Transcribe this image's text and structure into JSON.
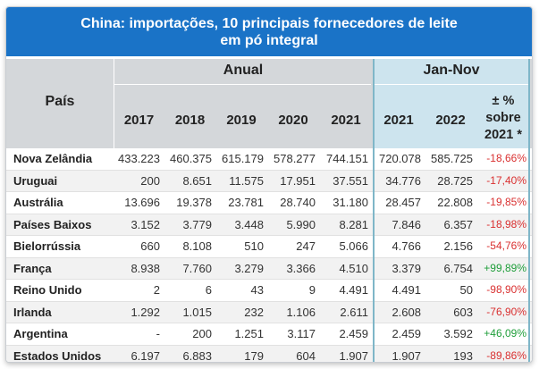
{
  "title": {
    "line1": "China: importações, 10 principais fornecedores de leite",
    "line2": "em pó integral"
  },
  "header": {
    "country": "País",
    "anual": "Anual",
    "jannov": "Jan-Nov",
    "years": [
      "2017",
      "2018",
      "2019",
      "2020",
      "2021"
    ],
    "jn_years": [
      "2021",
      "2022"
    ],
    "change_line1": "± %",
    "change_line2": "sobre",
    "change_line3": "2021 *"
  },
  "colors": {
    "title_bg": "#1a73c7",
    "header_bg": "#d4d7da",
    "jannov_bg": "#cde4ee",
    "negative": "#d93030",
    "positive": "#1f9e3a"
  },
  "chart_data": {
    "type": "table",
    "title": "China: importações, 10 principais fornecedores de leite em pó integral",
    "columns": [
      "País",
      "2017",
      "2018",
      "2019",
      "2020",
      "2021",
      "Jan-Nov 2021",
      "Jan-Nov 2022",
      "± % sobre 2021 *"
    ],
    "rows": [
      {
        "country": "Nova Zelândia",
        "v2017": "433.223",
        "v2018": "460.375",
        "v2019": "615.179",
        "v2020": "578.277",
        "v2021": "744.151",
        "jn2021": "720.078",
        "jn2022": "585.725",
        "change": "-18,66%",
        "positive": false
      },
      {
        "country": "Uruguai",
        "v2017": "200",
        "v2018": "8.651",
        "v2019": "11.575",
        "v2020": "17.951",
        "v2021": "37.551",
        "jn2021": "34.776",
        "jn2022": "28.725",
        "change": "-17,40%",
        "positive": false
      },
      {
        "country": "Austrália",
        "v2017": "13.696",
        "v2018": "19.378",
        "v2019": "23.781",
        "v2020": "28.740",
        "v2021": "31.180",
        "jn2021": "28.457",
        "jn2022": "22.808",
        "change": "-19,85%",
        "positive": false
      },
      {
        "country": "Países Baixos",
        "v2017": "3.152",
        "v2018": "3.779",
        "v2019": "3.448",
        "v2020": "5.990",
        "v2021": "8.281",
        "jn2021": "7.846",
        "jn2022": "6.357",
        "change": "-18,98%",
        "positive": false
      },
      {
        "country": "Bielorrússia",
        "v2017": "660",
        "v2018": "8.108",
        "v2019": "510",
        "v2020": "247",
        "v2021": "5.066",
        "jn2021": "4.766",
        "jn2022": "2.156",
        "change": "-54,76%",
        "positive": false
      },
      {
        "country": "França",
        "v2017": "8.938",
        "v2018": "7.760",
        "v2019": "3.279",
        "v2020": "3.366",
        "v2021": "4.510",
        "jn2021": "3.379",
        "jn2022": "6.754",
        "change": "+99,89%",
        "positive": true
      },
      {
        "country": "Reino Unido",
        "v2017": "2",
        "v2018": "6",
        "v2019": "43",
        "v2020": "9",
        "v2021": "4.491",
        "jn2021": "4.491",
        "jn2022": "50",
        "change": "-98,90%",
        "positive": false
      },
      {
        "country": "Irlanda",
        "v2017": "1.292",
        "v2018": "1.015",
        "v2019": "232",
        "v2020": "1.106",
        "v2021": "2.611",
        "jn2021": "2.608",
        "jn2022": "603",
        "change": "-76,90%",
        "positive": false
      },
      {
        "country": "Argentina",
        "v2017": "-",
        "v2018": "200",
        "v2019": "1.251",
        "v2020": "3.117",
        "v2021": "2.459",
        "jn2021": "2.459",
        "jn2022": "3.592",
        "change": "+46,09%",
        "positive": true
      },
      {
        "country": "Estados Unidos",
        "v2017": "6.197",
        "v2018": "6.883",
        "v2019": "179",
        "v2020": "604",
        "v2021": "1.907",
        "jn2021": "1.907",
        "jn2022": "193",
        "change": "-89,86%",
        "positive": false
      }
    ]
  }
}
